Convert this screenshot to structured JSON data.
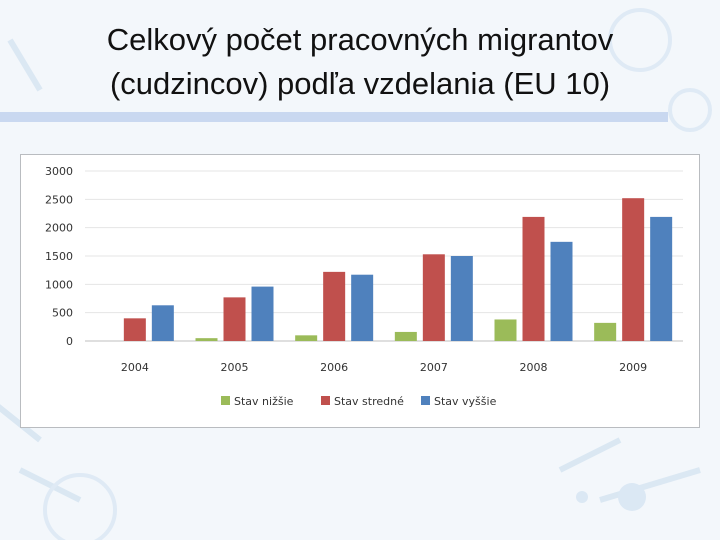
{
  "title_line1": "Celkový počet pracovných migrantov",
  "title_line2": "(cudzincov) podľa vzdelania (EU 10)",
  "chart_data": {
    "type": "bar",
    "categories": [
      "2004",
      "2005",
      "2006",
      "2007",
      "2008",
      "2009"
    ],
    "series": [
      {
        "name": "Stav nižšie",
        "color": "#9bbb59",
        "values": [
          0,
          50,
          100,
          160,
          380,
          320
        ]
      },
      {
        "name": "Stav stredné",
        "color": "#c0504d",
        "values": [
          400,
          770,
          1220,
          1530,
          2190,
          2520
        ]
      },
      {
        "name": "Stav vyššie",
        "color": "#4f81bd",
        "values": [
          630,
          960,
          1170,
          1500,
          1750,
          2190
        ]
      }
    ],
    "ylim": [
      0,
      3000
    ],
    "yticks": [
      0,
      500,
      1000,
      1500,
      2000,
      2500,
      3000
    ],
    "grid": true,
    "legend_position": "bottom"
  }
}
